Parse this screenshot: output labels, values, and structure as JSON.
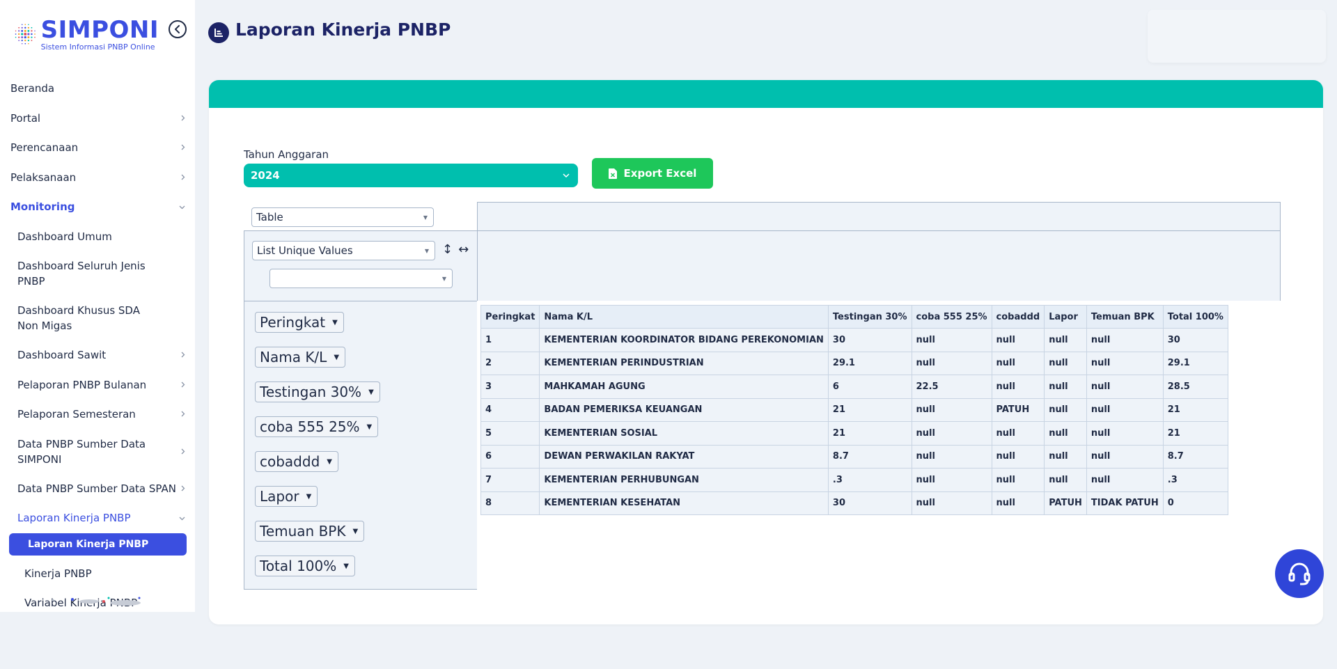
{
  "app": {
    "logo_title": "SIMPONI",
    "logo_subtitle": "Sistem Informasi PNBP Online"
  },
  "sidebar": {
    "items": [
      {
        "label": "Beranda",
        "level": 0,
        "chevron": false
      },
      {
        "label": "Portal",
        "level": 0,
        "chevron": true
      },
      {
        "label": "Perencanaan",
        "level": 0,
        "chevron": true
      },
      {
        "label": "Pelaksanaan",
        "level": 0,
        "chevron": true
      },
      {
        "label": "Monitoring",
        "level": 0,
        "chevron": true,
        "expanded": true
      },
      {
        "label": "Dashboard Umum",
        "level": 1,
        "chevron": false
      },
      {
        "label": "Dashboard Seluruh Jenis PNBP",
        "level": 1,
        "chevron": false
      },
      {
        "label": "Dashboard Khusus SDA Non Migas",
        "level": 1,
        "chevron": false
      },
      {
        "label": "Dashboard Sawit",
        "level": 1,
        "chevron": true
      },
      {
        "label": "Pelaporan PNBP Bulanan",
        "level": 1,
        "chevron": true
      },
      {
        "label": "Pelaporan Semesteran",
        "level": 1,
        "chevron": true
      },
      {
        "label": "Data PNBP Sumber Data SIMPONI",
        "level": 1,
        "chevron": true
      },
      {
        "label": "Data PNBP Sumber Data SPAN",
        "level": 1,
        "chevron": true
      },
      {
        "label": "Laporan Kinerja PNBP",
        "level": 1,
        "chevron": true,
        "expanded": true
      },
      {
        "label": "Laporan Kinerja PNBP",
        "level": 2,
        "current": true
      },
      {
        "label": "Kinerja PNBP",
        "level": 2
      },
      {
        "label": "Variabel Kinerja PNBP",
        "level": 2
      }
    ]
  },
  "header": {
    "title": "Laporan Kinerja PNBP",
    "icon": "chart-bar-icon"
  },
  "filters": {
    "year_label": "Tahun Anggaran",
    "year_value": "2024",
    "export_label": "Export Excel"
  },
  "pivot": {
    "renderer": "Table",
    "aggregator": "List Unique Values",
    "aggregator_attribute": "",
    "sort_row_symbol": "↕",
    "sort_col_symbol": "↔",
    "attributes": [
      "Peringkat",
      "Nama K/L",
      "Testingan 30%",
      "coba 555 25%",
      "cobaddd",
      "Lapor",
      "Temuan BPK",
      "Total 100%"
    ],
    "table": {
      "headers": [
        "Peringkat",
        "Nama K/L",
        "Testingan 30%",
        "coba 555 25%",
        "cobaddd",
        "Lapor",
        "Temuan BPK",
        "Total 100%"
      ],
      "rows": [
        [
          "1",
          "KEMENTERIAN KOORDINATOR BIDANG PEREKONOMIAN",
          "30",
          "null",
          "null",
          "null",
          "null",
          "30"
        ],
        [
          "2",
          "KEMENTERIAN PERINDUSTRIAN",
          "29.1",
          "null",
          "null",
          "null",
          "null",
          "29.1"
        ],
        [
          "3",
          "MAHKAMAH AGUNG",
          "6",
          "22.5",
          "null",
          "null",
          "null",
          "28.5"
        ],
        [
          "4",
          "BADAN PEMERIKSA KEUANGAN",
          "21",
          "null",
          "PATUH",
          "null",
          "null",
          "21"
        ],
        [
          "5",
          "KEMENTERIAN SOSIAL",
          "21",
          "null",
          "null",
          "null",
          "null",
          "21"
        ],
        [
          "6",
          "DEWAN PERWAKILAN RAKYAT",
          "8.7",
          "null",
          "null",
          "null",
          "null",
          "8.7"
        ],
        [
          "7",
          "KEMENTERIAN PERHUBUNGAN",
          ".3",
          "null",
          "null",
          "null",
          "null",
          ".3"
        ],
        [
          "8",
          "KEMENTERIAN KESEHATAN",
          "30",
          "null",
          "null",
          "PATUH",
          "TIDAK PATUH",
          "0"
        ]
      ]
    }
  },
  "colors": {
    "primary": "#3b4fe0",
    "teal": "#00bfae",
    "green": "#1ec75a",
    "navy": "#1c2366"
  }
}
